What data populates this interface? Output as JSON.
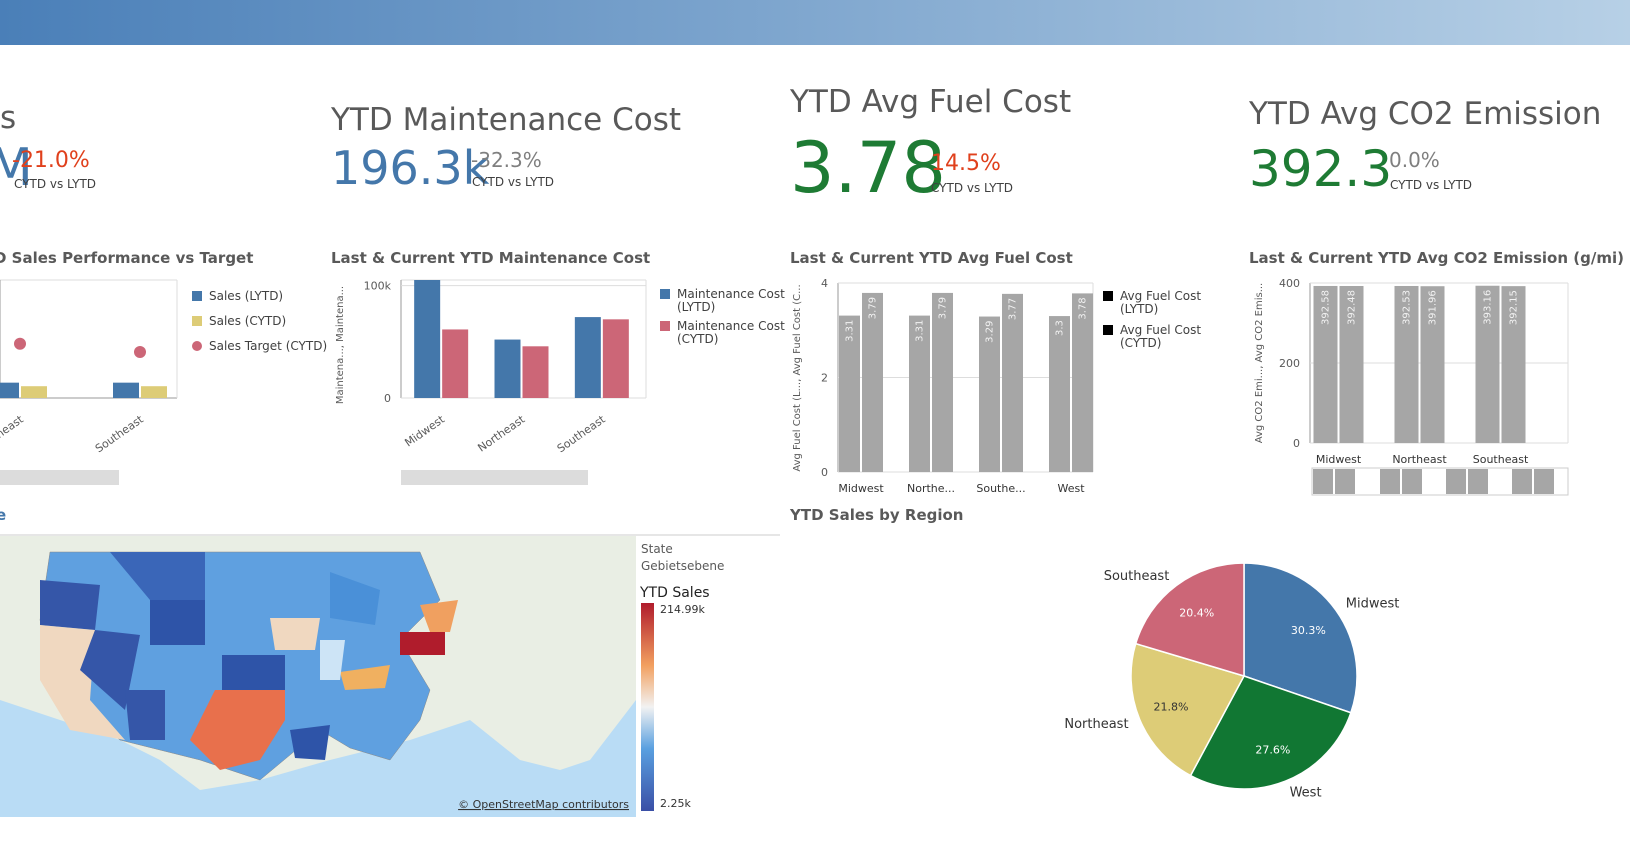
{
  "kpis": [
    {
      "title": "s",
      "value": "M",
      "change": "-21.0%",
      "subtitle": "CYTD vs LYTD"
    },
    {
      "title": "YTD Maintenance Cost",
      "value": "196.3k",
      "change": "-32.3%",
      "subtitle": "CYTD vs LYTD"
    },
    {
      "title": "YTD Avg Fuel Cost",
      "value": "3.78",
      "change": "14.5%",
      "subtitle": "CYTD vs LYTD"
    },
    {
      "title": "YTD Avg CO2 Emission",
      "value": "392.3",
      "change": "0.0%",
      "subtitle": "CYTD vs LYTD"
    }
  ],
  "chart_data": [
    {
      "type": "bar",
      "title": "D Sales Performance vs Target",
      "categories": [
        "Northeast",
        "Southeast"
      ],
      "ylim": [
        0,
        100
      ],
      "series": [
        {
          "name": "Sales (LYTD)",
          "color": "#4477aa",
          "values": [
            13,
            13
          ]
        },
        {
          "name": "Sales (CYTD)",
          "color": "#ddcc77",
          "values": [
            10,
            10
          ]
        },
        {
          "name": "Sales Target (CYTD)",
          "color": "#cc6677",
          "marker": "dot",
          "values": [
            46,
            39
          ]
        }
      ]
    },
    {
      "type": "bar",
      "title": "Last & Current YTD Maintenance Cost",
      "y_label": "Maintena..., Maintena...",
      "categories": [
        "Midwest",
        "Northeast",
        "Southeast"
      ],
      "ylim": [
        0,
        105000
      ],
      "yticks": [
        0,
        {
          "value": 100000,
          "label": "100k"
        }
      ],
      "series": [
        {
          "name": "Maintenance Cost (LYTD)",
          "color": "#4477aa",
          "values": [
            105000,
            52000,
            72000
          ]
        },
        {
          "name": "Maintenance Cost (CYTD)",
          "color": "#cc6677",
          "values": [
            61000,
            46000,
            70000
          ]
        }
      ]
    },
    {
      "type": "bar",
      "title": "Last & Current YTD Avg Fuel Cost",
      "y_label": "Avg Fuel Cost (L..., Avg Fuel Cost (C...",
      "categories": [
        "Midwest",
        "Northe...",
        "Southe...",
        "West"
      ],
      "ylim": [
        0,
        4
      ],
      "yticks": [
        0,
        2,
        4
      ],
      "legend_color": "#000000",
      "series": [
        {
          "name": "Avg Fuel Cost (LYTD)",
          "color": "#a6a6a6",
          "values": [
            3.31,
            3.31,
            3.29,
            3.3
          ]
        },
        {
          "name": "Avg Fuel Cost (CYTD)",
          "color": "#a6a6a6",
          "values": [
            3.79,
            3.79,
            3.77,
            3.78
          ]
        }
      ]
    },
    {
      "type": "bar",
      "title": "Last & Current YTD Avg CO2 Emission (g/mi)",
      "y_label": "Avg CO2 Emi..., Avg CO2 Emis...",
      "categories": [
        "Midwest",
        "Northeast",
        "Southeast"
      ],
      "ylim": [
        0,
        400
      ],
      "yticks": [
        0,
        200,
        400
      ],
      "series": [
        {
          "color": "#a6a6a6",
          "values": [
            392.58,
            392.53,
            393.16
          ]
        },
        {
          "color": "#a6a6a6",
          "values": [
            392.48,
            391.96,
            392.15
          ]
        }
      ]
    },
    {
      "type": "pie",
      "title": "YTD Sales by Region",
      "categories": [
        "Midwest",
        "West",
        "Northeast",
        "Southeast"
      ],
      "values": [
        30.3,
        27.6,
        21.8,
        20.4
      ],
      "value_labels": [
        "30.3%",
        "27.6%",
        "21.8%",
        "20.4%"
      ],
      "colors": [
        "#4477aa",
        "#117733",
        "#ddcc77",
        "#cc6677"
      ]
    }
  ],
  "map": {
    "title": "e",
    "legend_heading": [
      "State",
      "Gebietsebene"
    ],
    "measure": "YTD Sales",
    "max_label": "214.99k",
    "min_label": "2.25k",
    "attribution": "© OpenStreetMap contributors"
  }
}
